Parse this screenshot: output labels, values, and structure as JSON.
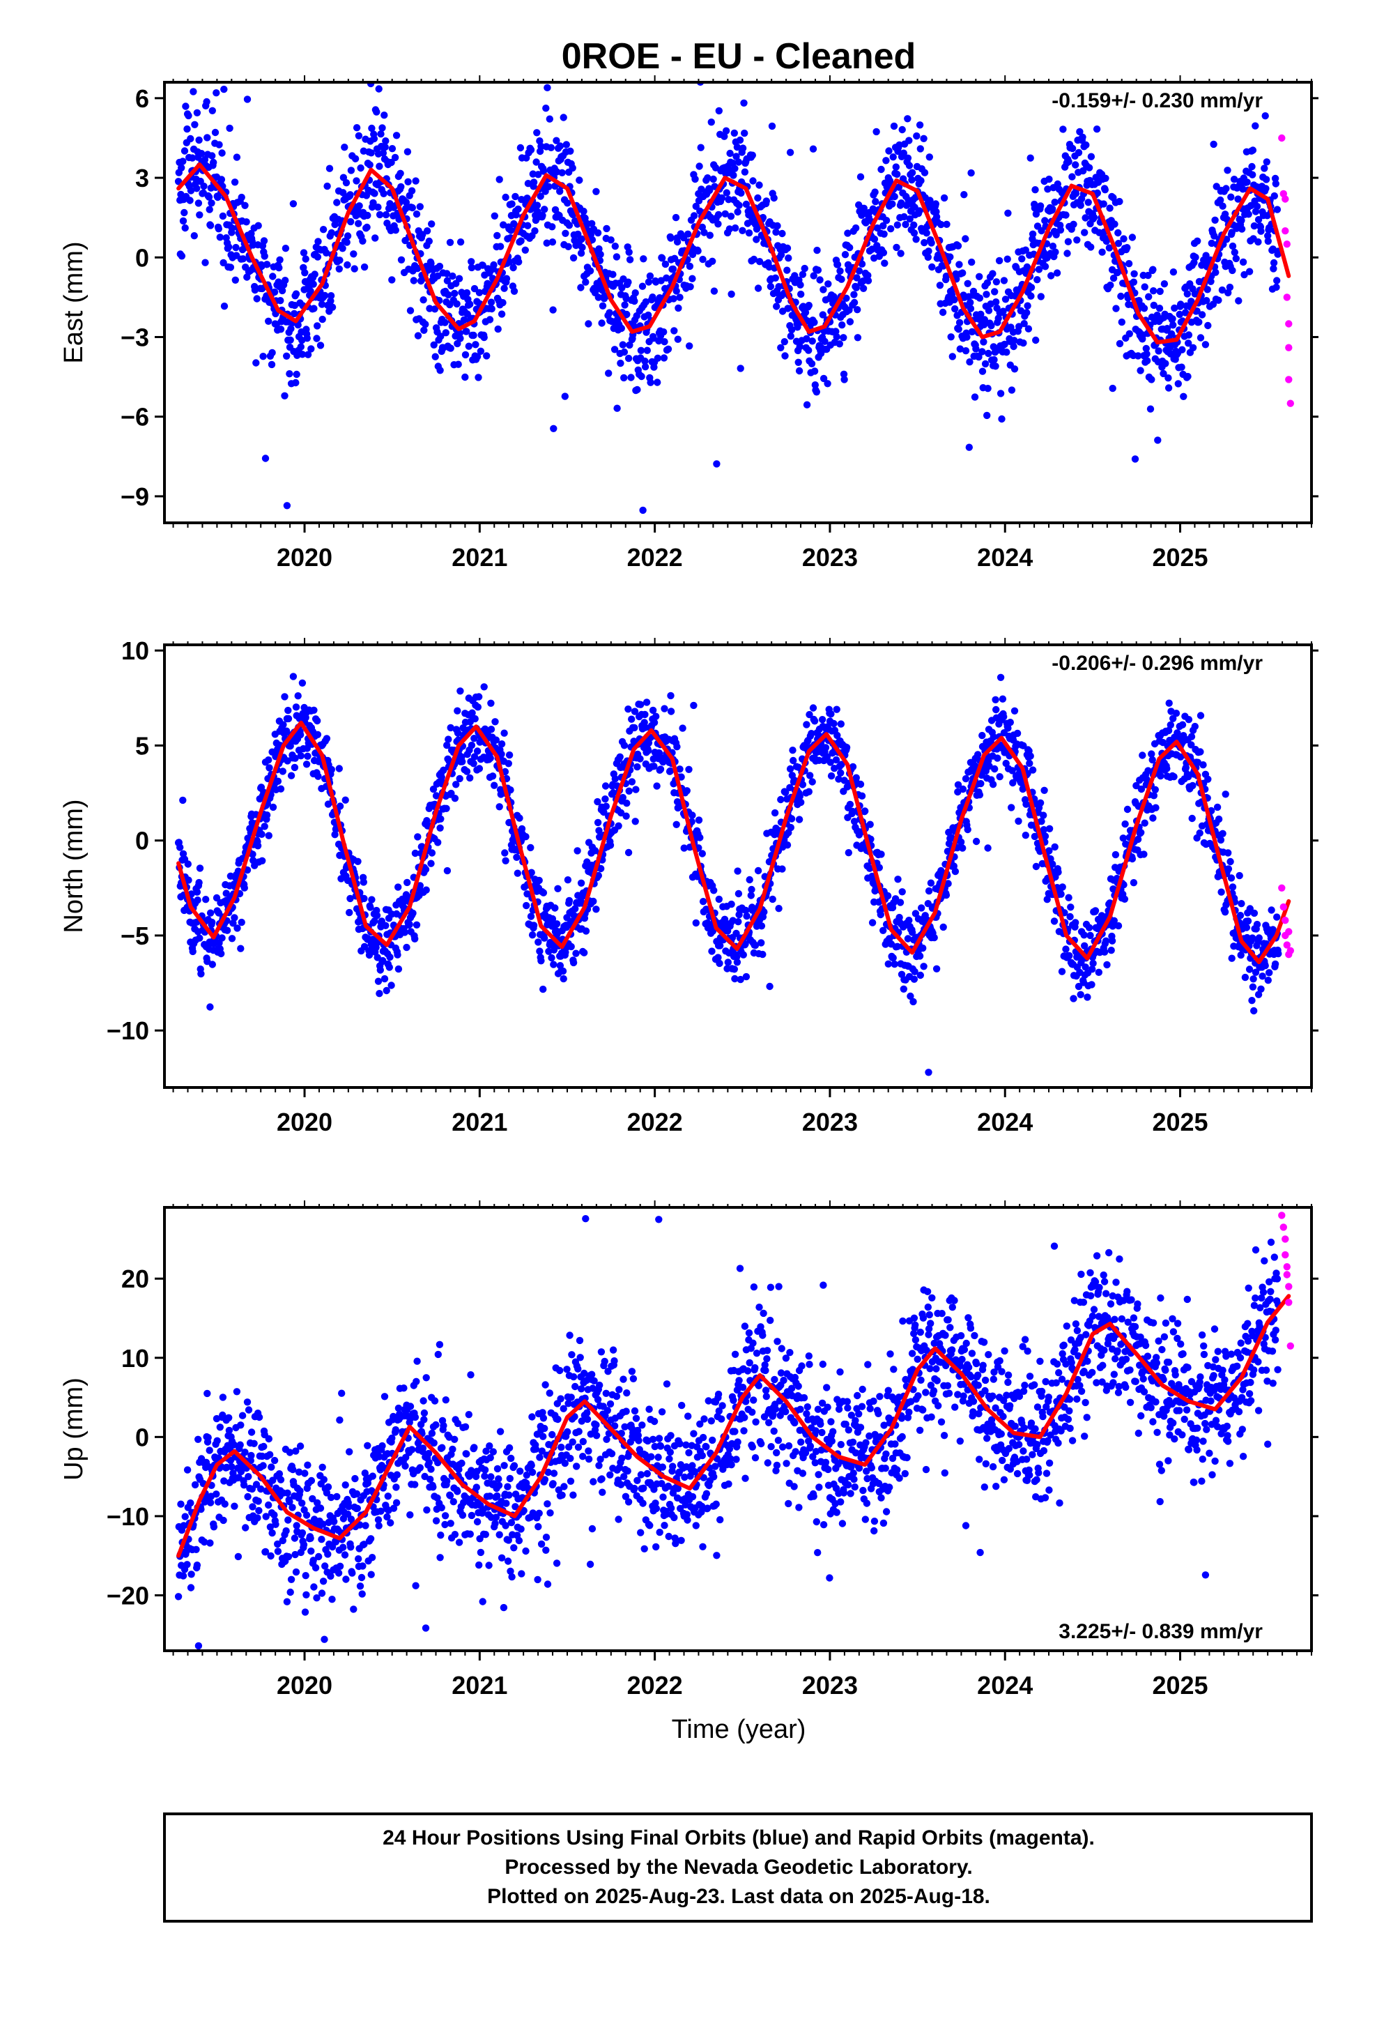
{
  "title": "0ROE  - EU - Cleaned",
  "xlabel": "Time (year)",
  "footer": [
    "24 Hour Positions Using Final Orbits (blue) and Rapid Orbits (magenta).",
    "Processed by the Nevada Geodetic Laboratory.",
    "Plotted on 2025-Aug-23. Last data on 2025-Aug-18."
  ],
  "colors": {
    "final_orbits": "#0000ff",
    "rapid_orbits": "#ff00ff",
    "model_fit": "#ff0000"
  },
  "chart_data": [
    {
      "type": "scatter",
      "ylabel": "East (mm)",
      "rate_text": "-0.159+/- 0.230 mm/yr",
      "rate_position": "top-right",
      "xlim": [
        2019.2,
        2025.75
      ],
      "ylim": [
        -10,
        6.6
      ],
      "xticks": [
        2020,
        2021,
        2022,
        2023,
        2024,
        2025
      ],
      "xtick_labels": [
        "2020",
        "2021",
        "2022",
        "2023",
        "2024",
        "2025"
      ],
      "yticks": [
        -9,
        -6,
        -3,
        0,
        3,
        6
      ],
      "ytick_labels": [
        "−9",
        "−6",
        "−3",
        "0",
        "3",
        "6"
      ],
      "grid": false,
      "fit": {
        "type": "line",
        "name": "",
        "x": [
          2019.28,
          2019.4,
          2019.55,
          2019.7,
          2019.85,
          2019.95,
          2020.1,
          2020.25,
          2020.38,
          2020.5,
          2020.62,
          2020.75,
          2020.88,
          2020.97,
          2021.1,
          2021.25,
          2021.38,
          2021.5,
          2021.62,
          2021.75,
          2021.87,
          2021.97,
          2022.1,
          2022.25,
          2022.4,
          2022.52,
          2022.65,
          2022.78,
          2022.88,
          2022.97,
          2023.1,
          2023.25,
          2023.38,
          2023.5,
          2023.63,
          2023.76,
          2023.87,
          2023.97,
          2024.1,
          2024.25,
          2024.38,
          2024.5,
          2024.63,
          2024.76,
          2024.87,
          2024.98,
          2025.1,
          2025.25,
          2025.4,
          2025.5,
          2025.62
        ],
        "y": [
          2.6,
          3.5,
          2.3,
          0.0,
          -2.0,
          -2.4,
          -1.0,
          1.7,
          3.3,
          2.6,
          0.5,
          -1.7,
          -2.7,
          -2.4,
          -0.8,
          1.6,
          3.1,
          2.6,
          0.6,
          -1.6,
          -2.8,
          -2.6,
          -1.1,
          1.3,
          3.0,
          2.6,
          0.6,
          -1.7,
          -2.8,
          -2.6,
          -1.1,
          1.3,
          2.9,
          2.5,
          0.4,
          -1.9,
          -3.0,
          -2.8,
          -1.3,
          1.1,
          2.7,
          2.4,
          0.3,
          -2.1,
          -3.2,
          -3.1,
          -1.6,
          0.9,
          2.6,
          2.2,
          -0.7
        ]
      },
      "final_points": {
        "name": "",
        "count": 2300,
        "y_jitter_mm": 1.2
      },
      "rapid_points": {
        "name": "",
        "x": [
          2025.58,
          2025.59,
          2025.6,
          2025.6,
          2025.61,
          2025.61,
          2025.62,
          2025.62,
          2025.62,
          2025.63
        ],
        "y": [
          4.5,
          2.4,
          2.2,
          1.0,
          0.5,
          -1.5,
          -2.5,
          -3.4,
          -4.6,
          -5.5
        ]
      }
    },
    {
      "type": "scatter",
      "ylabel": "North (mm)",
      "rate_text": "-0.206+/- 0.296 mm/yr",
      "rate_position": "top-right",
      "xlim": [
        2019.2,
        2025.75
      ],
      "ylim": [
        -13,
        10.3
      ],
      "xticks": [
        2020,
        2021,
        2022,
        2023,
        2024,
        2025
      ],
      "xtick_labels": [
        "2020",
        "2021",
        "2022",
        "2023",
        "2024",
        "2025"
      ],
      "yticks": [
        -10,
        -5,
        0,
        5,
        10
      ],
      "ytick_labels": [
        "−10",
        "−5",
        "0",
        "5",
        "10"
      ],
      "grid": false,
      "fit": {
        "type": "line",
        "name": "",
        "x": [
          2019.28,
          2019.35,
          2019.48,
          2019.6,
          2019.75,
          2019.88,
          2019.98,
          2020.1,
          2020.22,
          2020.35,
          2020.47,
          2020.6,
          2020.75,
          2020.88,
          2020.98,
          2021.1,
          2021.22,
          2021.35,
          2021.47,
          2021.6,
          2021.75,
          2021.88,
          2021.98,
          2022.1,
          2022.22,
          2022.35,
          2022.47,
          2022.6,
          2022.75,
          2022.88,
          2022.98,
          2023.1,
          2023.22,
          2023.35,
          2023.47,
          2023.6,
          2023.75,
          2023.88,
          2023.98,
          2024.1,
          2024.22,
          2024.35,
          2024.47,
          2024.6,
          2024.75,
          2024.88,
          2024.98,
          2025.1,
          2025.22,
          2025.35,
          2025.45,
          2025.55,
          2025.62
        ],
        "y": [
          -1.2,
          -3.5,
          -5.1,
          -3.0,
          1.5,
          5.0,
          6.2,
          4.5,
          0.0,
          -4.5,
          -5.5,
          -3.5,
          1.5,
          5.0,
          6.0,
          4.4,
          0.0,
          -4.5,
          -5.6,
          -3.5,
          1.3,
          4.8,
          5.8,
          4.3,
          -0.2,
          -4.6,
          -5.7,
          -3.6,
          1.2,
          4.7,
          5.6,
          4.0,
          -0.3,
          -4.7,
          -5.9,
          -3.8,
          1.1,
          4.5,
          5.4,
          3.8,
          -0.5,
          -5.0,
          -6.2,
          -4.0,
          0.8,
          4.3,
          5.2,
          3.5,
          -0.8,
          -5.3,
          -6.4,
          -5.0,
          -3.2
        ]
      },
      "final_points": {
        "name": "",
        "count": 2300,
        "y_jitter_mm": 1.1
      },
      "rapid_points": {
        "name": "",
        "x": [
          2025.58,
          2025.59,
          2025.6,
          2025.6,
          2025.61,
          2025.62,
          2025.62,
          2025.63
        ],
        "y": [
          -2.5,
          -3.5,
          -4.2,
          -5.0,
          -5.5,
          -6.0,
          -4.8,
          -5.8
        ]
      }
    },
    {
      "type": "scatter",
      "ylabel": "Up (mm)",
      "rate_text": "3.225+/- 0.839 mm/yr",
      "rate_position": "bottom-right",
      "xlim": [
        2019.2,
        2025.75
      ],
      "ylim": [
        -27,
        29
      ],
      "xticks": [
        2020,
        2021,
        2022,
        2023,
        2024,
        2025
      ],
      "xtick_labels": [
        "2020",
        "2021",
        "2022",
        "2023",
        "2024",
        "2025"
      ],
      "yticks": [
        -20,
        -10,
        0,
        10,
        20
      ],
      "ytick_labels": [
        "−20",
        "−10",
        "0",
        "10",
        "20"
      ],
      "grid": false,
      "fit": {
        "type": "line",
        "name": "",
        "x": [
          2019.28,
          2019.4,
          2019.5,
          2019.6,
          2019.75,
          2019.9,
          2020.05,
          2020.2,
          2020.35,
          2020.5,
          2020.6,
          2020.75,
          2020.9,
          2021.05,
          2021.2,
          2021.35,
          2021.5,
          2021.6,
          2021.75,
          2021.9,
          2022.05,
          2022.2,
          2022.35,
          2022.5,
          2022.6,
          2022.75,
          2022.9,
          2023.05,
          2023.2,
          2023.35,
          2023.5,
          2023.6,
          2023.75,
          2023.9,
          2024.05,
          2024.2,
          2024.35,
          2024.5,
          2024.6,
          2024.75,
          2024.9,
          2025.05,
          2025.2,
          2025.35,
          2025.5,
          2025.62
        ],
        "y": [
          -15.0,
          -8.0,
          -3.5,
          -1.8,
          -5.0,
          -9.5,
          -11.5,
          -12.8,
          -9.5,
          -3.0,
          1.3,
          -2.0,
          -6.0,
          -8.5,
          -10.0,
          -5.0,
          2.5,
          4.5,
          1.0,
          -2.5,
          -5.0,
          -6.5,
          -2.0,
          5.0,
          7.8,
          4.5,
          0.0,
          -2.5,
          -3.5,
          1.0,
          8.5,
          11.2,
          8.0,
          3.5,
          0.5,
          0.0,
          5.5,
          13.0,
          14.3,
          10.5,
          6.5,
          4.5,
          3.5,
          7.5,
          14.5,
          17.8
        ]
      },
      "final_points": {
        "name": "",
        "count": 2300,
        "y_jitter_mm": 4.5
      },
      "rapid_points": {
        "name": "",
        "x": [
          2025.58,
          2025.59,
          2025.6,
          2025.6,
          2025.61,
          2025.61,
          2025.62,
          2025.62,
          2025.63
        ],
        "y": [
          28,
          26.5,
          25,
          23,
          21.5,
          20.5,
          19,
          17,
          11.5
        ]
      }
    }
  ]
}
